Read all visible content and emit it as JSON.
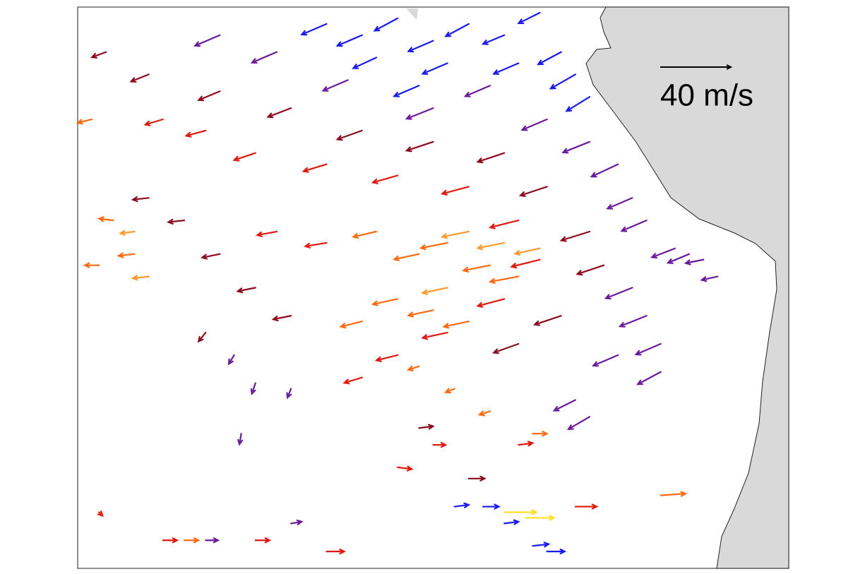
{
  "chart_data": {
    "type": "quiver",
    "xlim": [
      0,
      100
    ],
    "ylim": [
      0,
      100
    ],
    "key": {
      "value": 40,
      "label": "40 m/s"
    },
    "series": [
      {
        "color": "#1a1aee",
        "x": [
          35,
          40,
          45,
          50,
          55,
          60,
          65,
          68,
          70,
          72,
          62,
          52,
          42,
          48,
          53,
          57,
          60,
          64,
          66
        ],
        "y": [
          97,
          95,
          98,
          94,
          97,
          95,
          99,
          92,
          88,
          84,
          90,
          90,
          91,
          86,
          11,
          11,
          8,
          4,
          3
        ],
        "u": [
          -14,
          -14,
          -13,
          -14,
          -13,
          -12,
          -12,
          -13,
          -14,
          -13,
          -14,
          -14,
          -13,
          -14,
          8,
          9,
          8,
          9,
          10
        ],
        "v": [
          -6,
          -6,
          -7,
          -6,
          -7,
          -5,
          -6,
          -7,
          -8,
          -8,
          -6,
          -6,
          -6,
          -6,
          1,
          0,
          1,
          1,
          0
        ]
      },
      {
        "color": "#6a1a9a",
        "x": [
          20,
          28,
          38,
          50,
          58,
          66,
          72,
          76,
          78,
          80,
          84,
          86,
          78,
          80,
          82,
          82,
          76,
          70,
          72,
          88,
          90,
          22,
          25,
          30,
          23,
          30,
          18
        ],
        "y": [
          95,
          92,
          87,
          82,
          86,
          80,
          76,
          72,
          66,
          62,
          57,
          56,
          50,
          45,
          40,
          35,
          38,
          30,
          27,
          55,
          52,
          38,
          33,
          32,
          24,
          8,
          5
        ],
        "u": [
          -14,
          -14,
          -14,
          -15,
          -14,
          -14,
          -15,
          -15,
          -14,
          -14,
          -13,
          -12,
          -15,
          -15,
          -14,
          -13,
          -14,
          -12,
          -12,
          -10,
          -9,
          -3,
          -2,
          -2,
          -1,
          6,
          7
        ],
        "v": [
          -6,
          -6,
          -6,
          -6,
          -6,
          -6,
          -6,
          -7,
          -6,
          -6,
          -5,
          -5,
          -6,
          -6,
          -6,
          -7,
          -6,
          -6,
          -7,
          -2,
          -2,
          -5,
          -6,
          -5,
          -6,
          1,
          0
        ]
      },
      {
        "color": "#8b0a1e",
        "x": [
          4,
          10,
          20,
          30,
          40,
          50,
          60,
          66,
          72,
          74,
          68,
          62,
          10,
          15,
          20,
          25,
          30,
          18,
          48,
          55
        ],
        "y": [
          92,
          88,
          85,
          82,
          78,
          76,
          74,
          68,
          60,
          54,
          45,
          40,
          66,
          62,
          56,
          50,
          45,
          42,
          25,
          16
        ],
        "u": [
          -8,
          -10,
          -12,
          -13,
          -14,
          -15,
          -15,
          -15,
          -16,
          -15,
          -15,
          -14,
          -9,
          -9,
          -10,
          -10,
          -10,
          -4,
          8,
          9
        ],
        "v": [
          -3,
          -4,
          -5,
          -5,
          -5,
          -5,
          -5,
          -5,
          -5,
          -5,
          -5,
          -5,
          -1,
          -1,
          -2,
          -2,
          -2,
          -5,
          1,
          0
        ]
      },
      {
        "color": "#e0180e",
        "x": [
          12,
          18,
          25,
          35,
          45,
          55,
          62,
          65,
          60,
          52,
          45,
          40,
          28,
          35,
          3,
          12,
          25,
          35,
          70,
          62,
          50,
          45
        ],
        "y": [
          80,
          78,
          74,
          72,
          70,
          68,
          62,
          55,
          48,
          42,
          38,
          34,
          60,
          58,
          10,
          5,
          5,
          3,
          11,
          22,
          22,
          18
        ],
        "u": [
          -10,
          -11,
          -12,
          -13,
          -14,
          -15,
          -16,
          -16,
          -15,
          -14,
          -12,
          -10,
          -11,
          -12,
          2,
          8,
          8,
          10,
          12,
          8,
          7,
          8
        ],
        "v": [
          -3,
          -3,
          -4,
          -4,
          -4,
          -4,
          -4,
          -4,
          -4,
          -3,
          -3,
          -3,
          -2,
          -2,
          -2,
          0,
          0,
          0,
          0,
          1,
          0,
          -1
        ]
      },
      {
        "color": "#ff6a10",
        "x": [
          2,
          5,
          8,
          3,
          42,
          48,
          52,
          58,
          62,
          45,
          50,
          55,
          40,
          48,
          53,
          58,
          64,
          82,
          15
        ],
        "y": [
          80,
          62,
          56,
          54,
          60,
          56,
          58,
          54,
          52,
          48,
          46,
          44,
          44,
          36,
          32,
          28,
          24,
          13,
          5
        ],
        "u": [
          -8,
          -8,
          -9,
          -8,
          -13,
          -14,
          -15,
          -15,
          -16,
          -14,
          -14,
          -14,
          -12,
          -6,
          -5,
          -6,
          8,
          14,
          8
        ],
        "v": [
          -2,
          1,
          -1,
          0,
          -3,
          -3,
          -3,
          -3,
          -3,
          -3,
          -3,
          -3,
          -3,
          -2,
          -2,
          -2,
          0,
          1,
          0
        ]
      },
      {
        "color": "#ff9a30",
        "x": [
          55,
          60,
          65,
          52,
          8,
          10
        ],
        "y": [
          60,
          58,
          57,
          50,
          60,
          52
        ],
        "u": [
          -15,
          -15,
          -14,
          -14,
          -8,
          -9
        ],
        "v": [
          -3,
          -3,
          -3,
          -3,
          -1,
          -1
        ]
      },
      {
        "color": "#ffe020",
        "x": [
          60,
          63
        ],
        "y": [
          10,
          9
        ],
        "u": [
          18,
          16
        ],
        "v": [
          0,
          0
        ]
      }
    ]
  }
}
